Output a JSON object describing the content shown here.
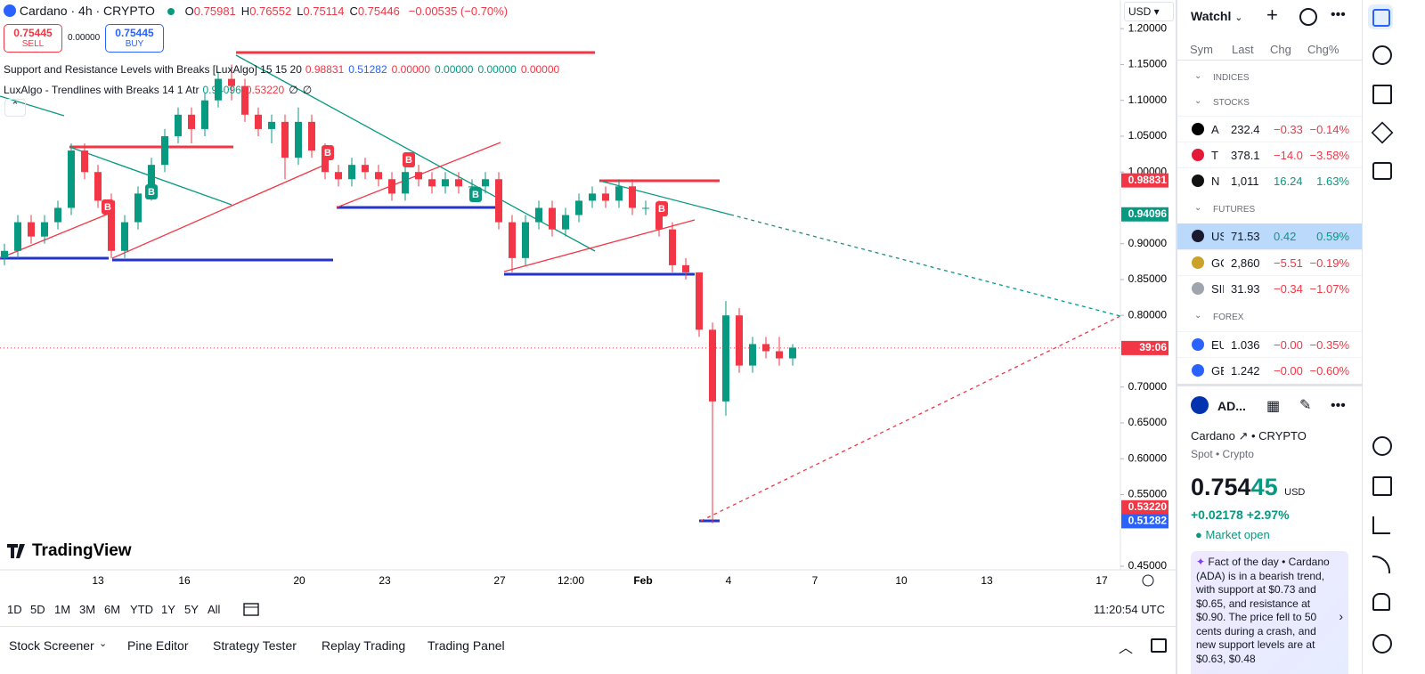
{
  "header": {
    "symbol": "Cardano · 4h · CRYPTO",
    "ohlc": [
      {
        "k": "O",
        "v": "0.75981"
      },
      {
        "k": "H",
        "v": "0.76552"
      },
      {
        "k": "L",
        "v": "0.75114"
      },
      {
        "k": "C",
        "v": "0.75446"
      }
    ],
    "change": "−0.00535 (−0.70%)"
  },
  "trade": {
    "sell_price": "0.75445",
    "sell": "SELL",
    "spread": "0.00000",
    "buy_price": "0.75445",
    "buy": "BUY"
  },
  "indicators": [
    {
      "name": "Support and Resistance Levels with Breaks [LuxAlgo] 15 15 20",
      "values": [
        "0.98831",
        "0.51282",
        "0.00000",
        "0.00000",
        "0.00000",
        "0.00000"
      ]
    },
    {
      "name": "LuxAlgo - Trendlines with Breaks 14 1 Atr",
      "values": [
        "0.94096",
        "0.53220",
        "∅",
        "∅"
      ]
    }
  ],
  "currency": "USD",
  "chart_data": {
    "type": "candlestick",
    "up_color": "#089981",
    "down_color": "#f23645",
    "candles": [
      [
        0.88,
        0.9,
        0.87,
        0.89
      ],
      [
        0.89,
        0.94,
        0.88,
        0.93
      ],
      [
        0.93,
        0.94,
        0.9,
        0.91
      ],
      [
        0.91,
        0.94,
        0.9,
        0.93
      ],
      [
        0.93,
        0.96,
        0.92,
        0.95
      ],
      [
        0.95,
        1.04,
        0.94,
        1.03
      ],
      [
        1.03,
        1.04,
        0.99,
        1.0
      ],
      [
        1.0,
        1.01,
        0.95,
        0.96
      ],
      [
        0.96,
        0.97,
        0.88,
        0.89
      ],
      [
        0.89,
        0.94,
        0.88,
        0.93
      ],
      [
        0.93,
        0.98,
        0.92,
        0.97
      ],
      [
        0.97,
        1.02,
        0.96,
        1.01
      ],
      [
        1.01,
        1.06,
        1.0,
        1.05
      ],
      [
        1.05,
        1.09,
        1.04,
        1.08
      ],
      [
        1.08,
        1.09,
        1.04,
        1.06
      ],
      [
        1.06,
        1.11,
        1.05,
        1.1
      ],
      [
        1.1,
        1.14,
        1.09,
        1.13
      ],
      [
        1.13,
        1.15,
        1.1,
        1.12
      ],
      [
        1.12,
        1.13,
        1.07,
        1.08
      ],
      [
        1.08,
        1.09,
        1.05,
        1.06
      ],
      [
        1.06,
        1.08,
        1.04,
        1.07
      ],
      [
        1.07,
        1.08,
        0.99,
        1.02
      ],
      [
        1.02,
        1.09,
        1.01,
        1.07
      ],
      [
        1.07,
        1.08,
        1.02,
        1.03
      ],
      [
        1.03,
        1.04,
        0.99,
        1.0
      ],
      [
        1.0,
        1.01,
        0.98,
        0.99
      ],
      [
        0.99,
        1.02,
        0.98,
        1.01
      ],
      [
        1.01,
        1.02,
        0.99,
        1.0
      ],
      [
        1.0,
        1.01,
        0.98,
        0.99
      ],
      [
        0.99,
        1.0,
        0.96,
        0.97
      ],
      [
        0.97,
        1.01,
        0.96,
        1.0
      ],
      [
        1.0,
        1.01,
        0.98,
        0.99
      ],
      [
        0.99,
        1.0,
        0.97,
        0.98
      ],
      [
        0.98,
        1.0,
        0.97,
        0.99
      ],
      [
        0.99,
        1.0,
        0.97,
        0.98
      ],
      [
        0.98,
        0.99,
        0.97,
        0.98
      ],
      [
        0.98,
        1.0,
        0.97,
        0.99
      ],
      [
        0.99,
        1.0,
        0.92,
        0.93
      ],
      [
        0.93,
        0.94,
        0.86,
        0.88
      ],
      [
        0.88,
        0.94,
        0.87,
        0.93
      ],
      [
        0.93,
        0.96,
        0.92,
        0.95
      ],
      [
        0.95,
        0.96,
        0.91,
        0.92
      ],
      [
        0.92,
        0.95,
        0.91,
        0.94
      ],
      [
        0.94,
        0.97,
        0.93,
        0.96
      ],
      [
        0.96,
        0.98,
        0.95,
        0.97
      ],
      [
        0.97,
        0.98,
        0.95,
        0.96
      ],
      [
        0.96,
        0.99,
        0.95,
        0.98
      ],
      [
        0.98,
        0.99,
        0.94,
        0.95
      ],
      [
        0.95,
        0.96,
        0.94,
        0.95
      ],
      [
        0.95,
        0.96,
        0.91,
        0.92
      ],
      [
        0.92,
        0.93,
        0.86,
        0.87
      ],
      [
        0.87,
        0.88,
        0.85,
        0.86
      ],
      [
        0.86,
        0.86,
        0.77,
        0.78
      ],
      [
        0.78,
        0.79,
        0.51,
        0.68
      ],
      [
        0.68,
        0.82,
        0.66,
        0.8
      ],
      [
        0.8,
        0.81,
        0.72,
        0.73
      ],
      [
        0.73,
        0.77,
        0.72,
        0.76
      ],
      [
        0.76,
        0.77,
        0.74,
        0.75
      ],
      [
        0.75,
        0.77,
        0.73,
        0.74
      ],
      [
        0.74,
        0.76,
        0.73,
        0.755
      ]
    ],
    "ylim": [
      0.45,
      1.24
    ],
    "yticks": [
      {
        "value": 1.2,
        "label": "1.20000"
      },
      {
        "value": 1.15,
        "label": "1.15000"
      },
      {
        "value": 1.1,
        "label": "1.10000"
      },
      {
        "value": 1.05,
        "label": "1.05000"
      },
      {
        "value": 1.0,
        "label": "1.00000"
      },
      {
        "value": 0.9,
        "label": "0.90000"
      },
      {
        "value": 0.85,
        "label": "0.85000"
      },
      {
        "value": 0.8,
        "label": "0.80000"
      },
      {
        "value": 0.7,
        "label": "0.70000"
      },
      {
        "value": 0.65,
        "label": "0.65000"
      },
      {
        "value": 0.6,
        "label": "0.60000"
      },
      {
        "value": 0.55,
        "label": "0.55000"
      },
      {
        "value": 0.45,
        "label": "0.45000"
      }
    ],
    "xlabels": [
      "13",
      "16",
      "20",
      "23",
      "27",
      "12:00",
      "Feb",
      "4",
      "7",
      "10",
      "13",
      "17"
    ],
    "price_tags": [
      {
        "value": 0.98831,
        "label": "0.98831",
        "color": "#f23645"
      },
      {
        "value": 0.94096,
        "label": "0.94096",
        "color": "#089981"
      },
      {
        "value": 0.75446,
        "label": "39:06",
        "color": "#f23645"
      },
      {
        "value": 0.5322,
        "label": "0.53220",
        "color": "#f23645"
      },
      {
        "value": 0.51282,
        "label": "0.51282",
        "color": "#2962ff"
      }
    ],
    "markers": [
      "B",
      "B",
      "B",
      "B",
      "B",
      "B"
    ],
    "watermark": "TradingView"
  },
  "periods": [
    "1D",
    "5D",
    "1M",
    "3M",
    "6M",
    "YTD",
    "1Y",
    "5Y",
    "All"
  ],
  "clock": "11:20:54 UTC",
  "bottom_tabs": [
    "Stock Screener",
    "Pine Editor",
    "Strategy Tester",
    "Replay Trading",
    "Trading Panel"
  ],
  "watchlist": {
    "title": "Watchl",
    "columns": [
      "Sym",
      "Last",
      "Chg",
      "Chg%"
    ],
    "sections": [
      {
        "name": "INDICES",
        "rows": []
      },
      {
        "name": "STOCKS",
        "rows": [
          [
            "A",
            "232.4",
            "−0.33",
            "−0.14%"
          ],
          [
            "T",
            "378.1",
            "−14.0",
            "−3.58%"
          ],
          [
            "N",
            "1,011",
            "16.24",
            "1.63%"
          ]
        ]
      },
      {
        "name": "FUTURES",
        "rows": [
          [
            "US",
            "71.53",
            "0.42",
            "0.59%"
          ],
          [
            "GC",
            "2,860",
            "−5.51",
            "−0.19%"
          ],
          [
            "SIL",
            "31.93",
            "−0.34",
            "−1.07%"
          ]
        ]
      },
      {
        "name": "FOREX",
        "rows": [
          [
            "EU",
            "1.036",
            "−0.00",
            "−0.35%"
          ],
          [
            "GE",
            "1.242",
            "−0.00",
            "−0.60%"
          ]
        ]
      }
    ]
  },
  "detail": {
    "symbol": "AD...",
    "name": "Cardano",
    "type": "CRYPTO",
    "sub": "Spot • Crypto",
    "price_main": "0.754",
    "price_tail": "45",
    "currency": "USD",
    "change": "+0.02178",
    "change_pct": "+2.97%",
    "status": "Market open",
    "fact_title": "Fact of the day •",
    "fact_text": "Cardano (ADA) is in a bearish trend, with support at $0.73 and $0.65, and resistance at $0.90. The price fell to 50 cents during a crash, and new support levels are at $0.63, $0.48"
  }
}
